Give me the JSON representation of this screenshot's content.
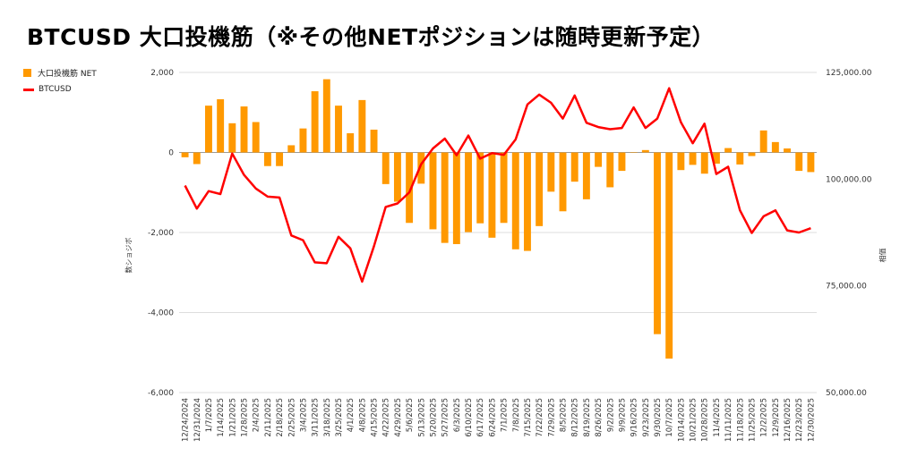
{
  "title": "BTCUSD 大口投機筋（※その他NETポジションは随時更新予定）",
  "colors": {
    "bar": "#ff9900",
    "line": "#ff0000",
    "grid": "#dddddd",
    "axis": "#333333"
  },
  "legend": {
    "bar_label": "大口投機筋  NET",
    "line_label": "BTCUSD"
  },
  "chart_data": {
    "type": "bar+line",
    "title": "BTCUSD 大口投機筋（※その他NETポジションは随時更新予定）",
    "ylabel_left": "数ショジボ",
    "ylabel_right": "相価",
    "ylim_left": [
      -6000,
      2000
    ],
    "ylim_right": [
      50000,
      125000
    ],
    "yticks_left": [
      2000,
      0,
      -2000,
      -4000,
      -6000
    ],
    "ytick_labels_left": [
      "2,000",
      "0",
      "-2,000",
      "-4,000",
      "-6,000"
    ],
    "yticks_right": [
      125000,
      100000,
      75000,
      50000
    ],
    "ytick_labels_right": [
      "125,000.00",
      "100,000.00",
      "75,000.00",
      "50,000.00"
    ],
    "xtick_labels": [
      "12/24/2024",
      "12/31/2024",
      "1/7/2025",
      "1/14/2025",
      "1/21/2025",
      "1/28/2025",
      "2/4/2025",
      "2/11/2025",
      "2/18/2025",
      "2/25/2025",
      "3/4/2025",
      "3/11/2025",
      "3/18/2025",
      "3/25/2025",
      "4/1/2025",
      "4/8/2025",
      "4/15/2025",
      "4/22/2025",
      "4/29/2025",
      "5/6/2025",
      "5/13/2025",
      "5/20/2025",
      "5/27/2025",
      "6/3/2025",
      "6/10/2025",
      "6/17/2025",
      "6/24/2025",
      "7/1/2025",
      "7/8/2025",
      "7/15/2025",
      "7/22/2025",
      "7/29/2025",
      "8/5/2025",
      "8/12/2025",
      "8/19/2025",
      "8/26/2025",
      "9/2/2025",
      "9/9/2025",
      "9/16/2025",
      "9/23/2025",
      "9/30/2025",
      "10/7/2025",
      "10/14/2025",
      "10/21/2025",
      "10/28/2025",
      "11/4/2025",
      "11/11/2025",
      "11/18/2025",
      "11/25/2025",
      "12/2/2025",
      "12/9/2025",
      "12/16/2025",
      "12/23/2025",
      "12/30/2025"
    ],
    "series": [
      {
        "name": "大口投機筋  NET",
        "kind": "bar",
        "axis": "left",
        "values": [
          -120,
          -290,
          1170,
          1330,
          730,
          1150,
          760,
          -340,
          -340,
          180,
          600,
          1530,
          1830,
          1170,
          480,
          1310,
          570,
          -790,
          -1230,
          -1760,
          -780,
          -1920,
          -2260,
          -2290,
          -1990,
          -1770,
          -2130,
          -1760,
          -2420,
          -2460,
          -1840,
          -980,
          -1470,
          -730,
          -1170,
          -360,
          -870,
          -460,
          0,
          60,
          -4540,
          -5150,
          -440,
          -310,
          -530,
          -280,
          110,
          -300,
          -90,
          550,
          260,
          100,
          -460,
          -490
        ]
      },
      {
        "name": "BTCUSD",
        "kind": "line",
        "axis": "right",
        "values": [
          98500,
          93100,
          97200,
          96500,
          106000,
          101000,
          97800,
          95900,
          95700,
          86800,
          85700,
          80500,
          80300,
          86500,
          83800,
          76000,
          84300,
          93500,
          94300,
          96900,
          103500,
          107200,
          109500,
          105600,
          110200,
          104800,
          106100,
          105700,
          109300,
          117500,
          119800,
          117900,
          114200,
          119600,
          113200,
          112200,
          111700,
          112000,
          116800,
          112000,
          114200,
          121300,
          113300,
          108400,
          113000,
          101200,
          102900,
          92700,
          87400,
          91300,
          92700,
          88000,
          87500,
          88500
        ]
      }
    ]
  }
}
